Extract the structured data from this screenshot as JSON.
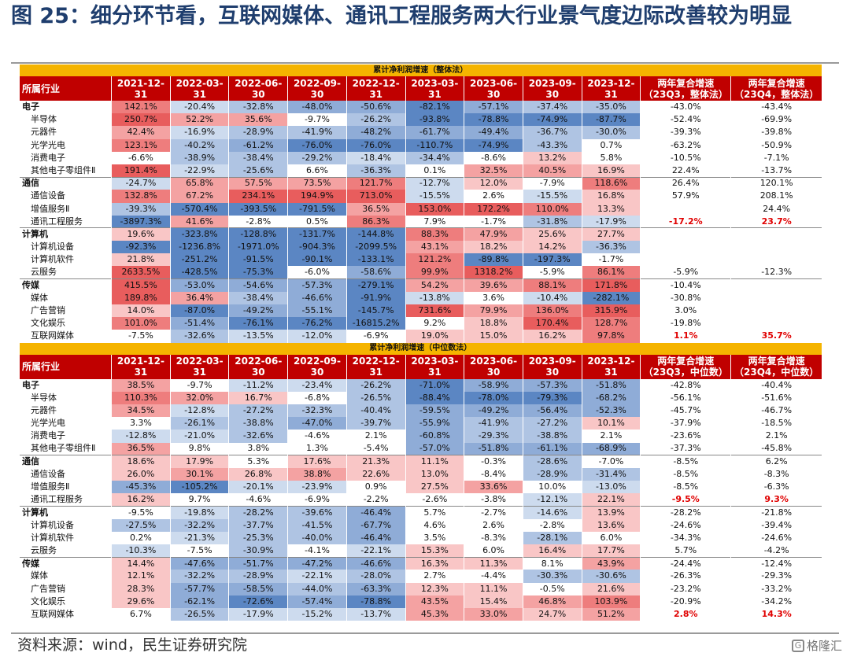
{
  "title": "图 25：细分环节看，互联网媒体、通讯工程服务两大行业景气度边际改善较为明显",
  "source": "资料来源：wind，民生证券研究院",
  "watermark": "格隆汇",
  "sections": [
    {
      "banner": "累计净利润增速（整体法）",
      "columns": [
        "所属行业",
        "2021-12-31",
        "2022-03-31",
        "2022-06-30",
        "2022-09-30",
        "2022-12-31",
        "2023-03-31",
        "2023-06-30",
        "2023-09-30",
        "2023-12-31",
        "两年复合增速\n（23Q3，整体法）",
        "两年复合增速\n（23Q4，整体法）"
      ],
      "rows": [
        {
          "name": "电子",
          "level": 1,
          "v": [
            "142.1%",
            "-20.4%",
            "-32.8%",
            "-48.0%",
            "-50.6%",
            "-82.1%",
            "-57.1%",
            "-37.4%",
            "-35.0%",
            "-43.0%",
            "-43.4%"
          ]
        },
        {
          "name": "半导体",
          "level": 2,
          "v": [
            "250.7%",
            "52.2%",
            "35.6%",
            "-9.7%",
            "-26.2%",
            "-93.8%",
            "-78.8%",
            "-74.9%",
            "-87.7%",
            "-52.4%",
            "-69.9%"
          ]
        },
        {
          "name": "元器件",
          "level": 2,
          "v": [
            "42.4%",
            "-16.9%",
            "-28.9%",
            "-41.9%",
            "-48.2%",
            "-61.7%",
            "-49.4%",
            "-36.7%",
            "-30.0%",
            "-39.3%",
            "-39.8%"
          ]
        },
        {
          "name": "光学光电",
          "level": 2,
          "v": [
            "123.1%",
            "-40.2%",
            "-61.2%",
            "-76.0%",
            "-76.0%",
            "-110.7%",
            "-74.9%",
            "-43.3%",
            "0.7%",
            "-63.2%",
            "-50.9%"
          ]
        },
        {
          "name": "消费电子",
          "level": 2,
          "v": [
            "-6.6%",
            "-38.9%",
            "-38.4%",
            "-29.2%",
            "-18.4%",
            "-34.4%",
            "-8.6%",
            "13.2%",
            "5.8%",
            "-10.5%",
            "-7.1%"
          ]
        },
        {
          "name": "其他电子零组件Ⅱ",
          "level": 2,
          "v": [
            "191.4%",
            "-22.9%",
            "-25.6%",
            "6.6%",
            "-36.3%",
            "0.1%",
            "32.5%",
            "40.5%",
            "16.9%",
            "22.4%",
            "-13.7%"
          ]
        },
        {
          "name": "通信",
          "level": 1,
          "v": [
            "-24.7%",
            "65.8%",
            "57.5%",
            "73.5%",
            "121.7%",
            "-12.7%",
            "12.0%",
            "-7.9%",
            "118.6%",
            "26.4%",
            "120.1%"
          ]
        },
        {
          "name": "通信设备",
          "level": 2,
          "v": [
            "132.8%",
            "67.2%",
            "234.1%",
            "194.9%",
            "713.0%",
            "-15.5%",
            "2.6%",
            "-15.5%",
            "16.8%",
            "57.9%",
            "208.1%"
          ]
        },
        {
          "name": "增值服务Ⅱ",
          "level": 2,
          "v": [
            "-39.3%",
            "-570.4%",
            "-393.5%",
            "-791.5%",
            "36.5%",
            "153.0%",
            "172.2%",
            "110.0%",
            "13.3%",
            "",
            "24.4%"
          ]
        },
        {
          "name": "通讯工程服务",
          "level": 2,
          "red": true,
          "v": [
            "-3897.3%",
            "41.6%",
            "-2.8%",
            "0.5%",
            "86.3%",
            "7.9%",
            "-1.7%",
            "-31.8%",
            "-17.9%",
            "-17.2%",
            "23.7%"
          ]
        },
        {
          "name": "计算机",
          "level": 1,
          "v": [
            "19.6%",
            "-323.8%",
            "-128.8%",
            "-131.7%",
            "-144.8%",
            "88.3%",
            "47.9%",
            "25.6%",
            "27.7%",
            "",
            ""
          ]
        },
        {
          "name": "计算机设备",
          "level": 2,
          "v": [
            "-92.3%",
            "-1236.8%",
            "-1971.0%",
            "-904.3%",
            "-2099.5%",
            "43.1%",
            "18.2%",
            "14.2%",
            "-36.3%",
            "",
            ""
          ]
        },
        {
          "name": "计算机软件",
          "level": 2,
          "v": [
            "21.8%",
            "-251.2%",
            "-91.5%",
            "-90.1%",
            "-133.1%",
            "121.2%",
            "-89.8%",
            "-197.3%",
            "-1.7%",
            "",
            ""
          ]
        },
        {
          "name": "云服务",
          "level": 2,
          "v": [
            "2633.5%",
            "-428.5%",
            "-75.3%",
            "-6.0%",
            "-58.6%",
            "99.9%",
            "1318.2%",
            "-5.9%",
            "86.1%",
            "-5.9%",
            "-12.3%"
          ]
        },
        {
          "name": "传媒",
          "level": 1,
          "v": [
            "415.5%",
            "-53.0%",
            "-54.6%",
            "-57.3%",
            "-279.1%",
            "54.2%",
            "39.6%",
            "88.1%",
            "171.8%",
            "-10.4%",
            ""
          ]
        },
        {
          "name": "媒体",
          "level": 2,
          "v": [
            "189.8%",
            "36.4%",
            "-38.4%",
            "-46.6%",
            "-91.9%",
            "-13.8%",
            "3.6%",
            "-10.4%",
            "-282.1%",
            "-30.8%",
            ""
          ]
        },
        {
          "name": "广告营销",
          "level": 2,
          "v": [
            "14.0%",
            "-87.0%",
            "-49.2%",
            "-55.1%",
            "-145.7%",
            "731.6%",
            "79.9%",
            "136.0%",
            "315.9%",
            "3.0%",
            ""
          ]
        },
        {
          "name": "文化娱乐",
          "level": 2,
          "v": [
            "101.0%",
            "-51.4%",
            "-76.1%",
            "-76.2%",
            "-16815.2%",
            "9.2%",
            "18.8%",
            "170.4%",
            "128.7%",
            "-19.8%",
            ""
          ]
        },
        {
          "name": "互联网媒体",
          "level": 2,
          "red": true,
          "v": [
            "-7.5%",
            "-32.6%",
            "-13.5%",
            "-12.0%",
            "-6.9%",
            "19.0%",
            "15.0%",
            "16.2%",
            "97.8%",
            "1.1%",
            "35.7%"
          ]
        }
      ]
    },
    {
      "banner": "累计净利润增速（中位数法）",
      "columns": [
        "所属行业",
        "2021-12-31",
        "2022-03-31",
        "2022-06-30",
        "2022-09-30",
        "2022-12-31",
        "2023-03-31",
        "2023-06-30",
        "2023-09-30",
        "2023-12-31",
        "两年复合增速\n（23Q3，中位数）",
        "两年复合增速\n（23Q4，中位数）"
      ],
      "rows": [
        {
          "name": "电子",
          "level": 1,
          "v": [
            "38.5%",
            "-9.7%",
            "-11.2%",
            "-23.4%",
            "-26.2%",
            "-71.0%",
            "-58.9%",
            "-57.3%",
            "-51.8%",
            "-42.8%",
            "-40.4%"
          ]
        },
        {
          "name": "半导体",
          "level": 2,
          "v": [
            "110.3%",
            "32.0%",
            "16.7%",
            "-6.8%",
            "-26.5%",
            "-88.4%",
            "-78.0%",
            "-79.3%",
            "-68.2%",
            "-56.1%",
            "-51.6%"
          ]
        },
        {
          "name": "元器件",
          "level": 2,
          "v": [
            "34.5%",
            "-12.8%",
            "-27.2%",
            "-32.3%",
            "-40.4%",
            "-59.5%",
            "-49.2%",
            "-56.4%",
            "-52.3%",
            "-45.7%",
            "-46.7%"
          ]
        },
        {
          "name": "光学光电",
          "level": 2,
          "v": [
            "3.3%",
            "-26.1%",
            "-38.8%",
            "-47.0%",
            "-39.7%",
            "-55.9%",
            "-41.9%",
            "-27.2%",
            "10.1%",
            "-37.9%",
            "-18.5%"
          ]
        },
        {
          "name": "消费电子",
          "level": 2,
          "v": [
            "-12.8%",
            "-21.0%",
            "-32.6%",
            "-4.6%",
            "2.1%",
            "-60.8%",
            "-29.3%",
            "-38.8%",
            "2.1%",
            "-23.6%",
            "2.1%"
          ]
        },
        {
          "name": "其他电子零组件Ⅱ",
          "level": 2,
          "v": [
            "36.5%",
            "9.8%",
            "3.8%",
            "1.3%",
            "-5.4%",
            "-57.0%",
            "-51.8%",
            "-61.1%",
            "-68.9%",
            "-37.3%",
            "-45.8%"
          ]
        },
        {
          "name": "通信",
          "level": 1,
          "v": [
            "18.6%",
            "17.9%",
            "5.3%",
            "17.6%",
            "21.3%",
            "11.1%",
            "-0.3%",
            "-28.6%",
            "-7.0%",
            "-8.5%",
            "6.2%"
          ]
        },
        {
          "name": "通信设备",
          "level": 2,
          "v": [
            "26.0%",
            "30.1%",
            "26.8%",
            "38.8%",
            "22.6%",
            "13.0%",
            "-8.4%",
            "-28.9%",
            "-31.4%",
            "-8.5%",
            "-8.3%"
          ]
        },
        {
          "name": "增值服务Ⅱ",
          "level": 2,
          "v": [
            "-45.3%",
            "-105.2%",
            "-20.1%",
            "-23.9%",
            "0.9%",
            "27.5%",
            "33.6%",
            "10.0%",
            "-13.0%",
            "-8.5%",
            "-6.3%"
          ]
        },
        {
          "name": "通讯工程服务",
          "level": 2,
          "red": true,
          "v": [
            "16.2%",
            "9.7%",
            "-4.6%",
            "-6.9%",
            "-2.2%",
            "-2.6%",
            "-3.8%",
            "-12.1%",
            "22.1%",
            "-9.5%",
            "9.3%"
          ]
        },
        {
          "name": "计算机",
          "level": 1,
          "v": [
            "-9.5%",
            "-19.8%",
            "-28.2%",
            "-39.6%",
            "-46.4%",
            "5.7%",
            "-2.7%",
            "-14.6%",
            "13.9%",
            "-28.2%",
            "-21.8%"
          ]
        },
        {
          "name": "计算机设备",
          "level": 2,
          "v": [
            "-27.5%",
            "-32.2%",
            "-37.7%",
            "-41.5%",
            "-67.7%",
            "4.6%",
            "2.6%",
            "-2.8%",
            "13.6%",
            "-24.6%",
            "-39.4%"
          ]
        },
        {
          "name": "计算机软件",
          "level": 2,
          "v": [
            "0.2%",
            "-21.3%",
            "-25.3%",
            "-40.0%",
            "-46.4%",
            "3.5%",
            "-8.3%",
            "-28.1%",
            "6.0%",
            "-34.3%",
            "-24.6%"
          ]
        },
        {
          "name": "云服务",
          "level": 2,
          "v": [
            "-10.3%",
            "-7.5%",
            "-30.9%",
            "-4.1%",
            "-22.1%",
            "15.3%",
            "6.0%",
            "16.4%",
            "17.7%",
            "5.7%",
            "-4.2%"
          ]
        },
        {
          "name": "传媒",
          "level": 1,
          "v": [
            "14.4%",
            "-47.6%",
            "-51.7%",
            "-47.2%",
            "-46.6%",
            "16.3%",
            "11.3%",
            "8.1%",
            "43.9%",
            "-24.4%",
            "-12.4%"
          ]
        },
        {
          "name": "媒体",
          "level": 2,
          "v": [
            "12.1%",
            "-32.2%",
            "-28.9%",
            "-22.1%",
            "-28.0%",
            "2.7%",
            "-4.4%",
            "-30.3%",
            "-30.6%",
            "-26.3%",
            "-29.3%"
          ]
        },
        {
          "name": "广告营销",
          "level": 2,
          "v": [
            "28.3%",
            "-57.7%",
            "-58.5%",
            "-44.0%",
            "-63.3%",
            "12.3%",
            "11.1%",
            "-0.5%",
            "21.6%",
            "-23.2%",
            "-33.2%"
          ]
        },
        {
          "name": "文化娱乐",
          "level": 2,
          "v": [
            "29.6%",
            "-62.1%",
            "-72.6%",
            "-57.4%",
            "-78.8%",
            "43.5%",
            "15.4%",
            "46.8%",
            "103.9%",
            "-20.9%",
            "-34.2%"
          ]
        },
        {
          "name": "互联网媒体",
          "level": 2,
          "red": true,
          "v": [
            "6.7%",
            "-26.5%",
            "-17.9%",
            "-15.2%",
            "-13.7%",
            "45.3%",
            "33.0%",
            "24.7%",
            "51.2%",
            "2.8%",
            "14.3%"
          ]
        }
      ]
    }
  ]
}
